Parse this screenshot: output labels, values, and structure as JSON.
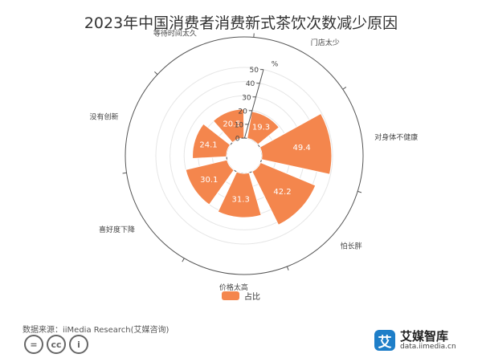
{
  "title": "2023年中国消费者消费新式茶饮次数减少原因",
  "source": "数据来源：iiMedia Research(艾媒咨询)",
  "brand": {
    "logo_char": "艾",
    "name": "艾媒智库",
    "url": "data.iimedia.cn"
  },
  "license_icons": [
    "=",
    "cc",
    "i"
  ],
  "colors": {
    "bar": "#f4864d",
    "grid": "#e6e6e6",
    "axis": "#555555"
  },
  "chart_data": {
    "type": "polar-bar",
    "title": "2023年中国消费者消费新式茶饮次数减少原因",
    "categories": [
      "门店太少",
      "对身体不健康",
      "怕长胖",
      "价格太高",
      "喜好度下降",
      "没有创新",
      "等待时间太久"
    ],
    "series": [
      {
        "name": "占比",
        "values": [
          19.3,
          49.4,
          42.2,
          31.3,
          30.1,
          24.1,
          20.5
        ]
      }
    ],
    "radial_axis": {
      "unit": "%",
      "min": 0,
      "max": 50,
      "ticks": [
        0,
        10,
        20,
        30,
        40,
        50
      ]
    },
    "legend": "bottom-center",
    "grid": true
  }
}
